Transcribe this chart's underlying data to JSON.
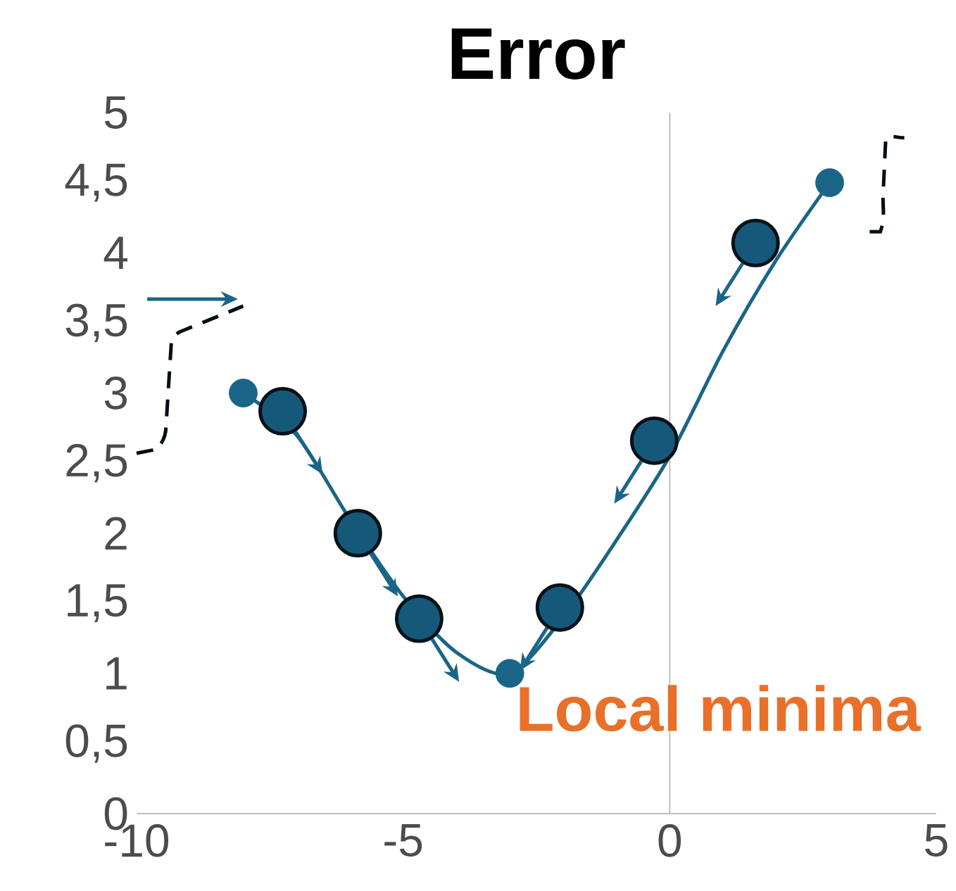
{
  "chart_data": {
    "type": "line",
    "title": "Error",
    "xlim": [
      -10,
      5
    ],
    "ylim": [
      0,
      5
    ],
    "xticks": [
      -10,
      -5,
      0,
      5
    ],
    "yticks": [
      0,
      {
        "value": 0.5,
        "label": "0,5"
      },
      1,
      {
        "value": 1.5,
        "label": "1,5"
      },
      2,
      {
        "value": 2.5,
        "label": "2,5"
      },
      3,
      {
        "value": 3.5,
        "label": "3,5"
      },
      4,
      {
        "value": 4.5,
        "label": "4,5"
      },
      5
    ],
    "grid": false,
    "series": [
      {
        "color": "#1a6587",
        "marker": "none",
        "x": [
          -8,
          -7,
          -6,
          -5,
          -4,
          -3,
          -2,
          -1,
          0,
          1,
          2,
          3
        ],
        "values": [
          3,
          2.7,
          2.1,
          1.55,
          1.15,
          1,
          1.4,
          1.95,
          2.55,
          3.3,
          3.95,
          4.5
        ]
      },
      {
        "type": "scatter",
        "color": "#1a6587",
        "marker": "circle",
        "x": [
          -8,
          -3,
          3
        ],
        "values": [
          3,
          1,
          4.5
        ]
      },
      {
        "type": "scatter",
        "color": "#16587a",
        "marker": "circle",
        "x": [
          -7.26,
          -5.85,
          -4.7,
          -2.06,
          -0.29,
          1.61
        ],
        "values": [
          2.87,
          2.0,
          1.39,
          1.47,
          2.66,
          4.07
        ]
      }
    ],
    "ref_lines": [
      {
        "axis": "x",
        "value": 0,
        "color": "#bfbfbf"
      }
    ],
    "annotations": [
      {
        "text": "Local minima",
        "x": -3,
        "y": 1
      }
    ]
  }
}
